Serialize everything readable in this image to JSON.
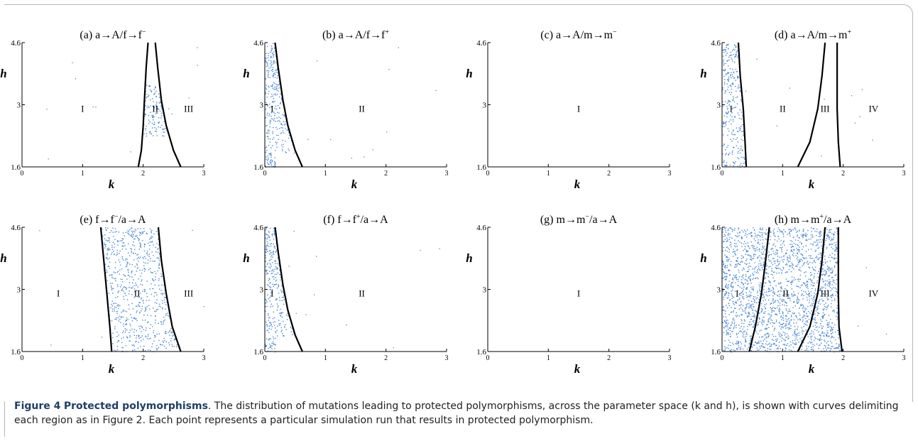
{
  "caption": {
    "label": "Figure 4",
    "title": "Protected polymorphisms",
    "text": ". The distribution of mutations leading to protected polymorphisms, across the parameter space (k and h), is shown with curves delimiting each region as in Figure 2. Each point represents a particular simulation run that results in protected polymorphism."
  },
  "chart_data": [
    {
      "panel": "a",
      "type": "scatter",
      "title": "(a) a→A/f→f−",
      "xlabel": "k",
      "ylabel": "h",
      "xlim": [
        0,
        3
      ],
      "ylim": [
        1.6,
        4.6
      ],
      "xticks": [
        "0",
        "1",
        "2",
        "3"
      ],
      "yticks": [
        "1.6",
        "3",
        "4.6"
      ],
      "regions": [
        {
          "label": "I",
          "x": 1.0
        },
        {
          "label": "II",
          "x": 2.2
        },
        {
          "label": "III",
          "x": 2.75
        }
      ],
      "boundaries": [
        [
          [
            1.92,
            1.6
          ],
          [
            1.97,
            2.0
          ],
          [
            2.0,
            2.6
          ],
          [
            2.02,
            3.2
          ],
          [
            2.05,
            4.0
          ],
          [
            2.08,
            4.6
          ]
        ],
        [
          [
            2.62,
            1.6
          ],
          [
            2.5,
            2.0
          ],
          [
            2.38,
            2.6
          ],
          [
            2.3,
            3.2
          ],
          [
            2.24,
            4.0
          ],
          [
            2.2,
            4.6
          ]
        ]
      ],
      "points": {
        "region": [
          [
            1.92,
            2.08
          ]
        ],
        "count": 300
      }
    },
    {
      "panel": "b",
      "type": "scatter",
      "title": "(b) a→A/f→f+",
      "xlabel": "k",
      "ylabel": "h",
      "xlim": [
        0,
        3
      ],
      "ylim": [
        1.6,
        4.6
      ],
      "xticks": [
        "0",
        "1",
        "2",
        "3"
      ],
      "yticks": [
        "1.6",
        "3",
        "4.6"
      ],
      "regions": [
        {
          "label": "I",
          "x": 0.12
        },
        {
          "label": "II",
          "x": 1.6
        }
      ],
      "boundaries": [
        [
          [
            0.62,
            1.6
          ],
          [
            0.5,
            2.0
          ],
          [
            0.38,
            2.6
          ],
          [
            0.3,
            3.2
          ],
          [
            0.22,
            4.0
          ],
          [
            0.17,
            4.6
          ]
        ]
      ],
      "points": {
        "region": [
          [
            0.0,
            0.17
          ]
        ],
        "count": 300
      }
    },
    {
      "panel": "c",
      "type": "scatter",
      "title": "(c) a→A/m→m−",
      "xlabel": "k",
      "ylabel": "h",
      "xlim": [
        0,
        3
      ],
      "ylim": [
        1.6,
        4.6
      ],
      "xticks": [
        "0",
        "1",
        "2",
        "3"
      ],
      "yticks": [
        "1.6",
        "3",
        "4.6"
      ],
      "regions": [
        {
          "label": "I",
          "x": 1.5
        }
      ],
      "boundaries": [],
      "points": {
        "region": [],
        "count": 0
      }
    },
    {
      "panel": "d",
      "type": "scatter",
      "title": "(d) a→A/m→m+",
      "xlabel": "k",
      "ylabel": "h",
      "xlim": [
        0,
        3
      ],
      "ylim": [
        1.6,
        4.6
      ],
      "xticks": [
        "0",
        "1",
        "2",
        "3"
      ],
      "yticks": [
        "1.6",
        "3",
        "4.6"
      ],
      "regions": [
        {
          "label": "I",
          "x": 0.15
        },
        {
          "label": "II",
          "x": 1.0
        },
        {
          "label": "III",
          "x": 1.7
        },
        {
          "label": "IV",
          "x": 2.5
        }
      ],
      "boundaries": [
        [
          [
            0.4,
            1.6
          ],
          [
            0.38,
            2.2
          ],
          [
            0.35,
            3.0
          ],
          [
            0.3,
            3.8
          ],
          [
            0.27,
            4.6
          ]
        ],
        [
          [
            1.25,
            1.6
          ],
          [
            1.45,
            2.2
          ],
          [
            1.58,
            3.0
          ],
          [
            1.65,
            3.8
          ],
          [
            1.7,
            4.6
          ]
        ],
        [
          [
            1.95,
            1.6
          ],
          [
            1.92,
            2.2
          ],
          [
            1.9,
            3.0
          ],
          [
            1.9,
            3.8
          ],
          [
            1.9,
            4.6
          ]
        ]
      ],
      "points": {
        "region": [
          [
            0.0,
            0.27
          ],
          [
            1.7,
            1.9
          ]
        ],
        "count": 600
      }
    },
    {
      "panel": "e",
      "type": "scatter",
      "title": "(e) f→f−/a→A",
      "xlabel": "k",
      "ylabel": "h",
      "xlim": [
        0,
        3
      ],
      "ylim": [
        1.6,
        4.6
      ],
      "xticks": [
        "0",
        "1",
        "2",
        "3"
      ],
      "yticks": [
        "1.6",
        "3",
        "4.6"
      ],
      "regions": [
        {
          "label": "I",
          "x": 0.6
        },
        {
          "label": "II",
          "x": 1.9
        },
        {
          "label": "III",
          "x": 2.75
        }
      ],
      "boundaries": [
        [
          [
            1.48,
            1.6
          ],
          [
            1.45,
            2.2
          ],
          [
            1.4,
            3.0
          ],
          [
            1.35,
            3.8
          ],
          [
            1.3,
            4.6
          ]
        ],
        [
          [
            2.62,
            1.6
          ],
          [
            2.48,
            2.2
          ],
          [
            2.38,
            3.0
          ],
          [
            2.3,
            3.8
          ],
          [
            2.25,
            4.6
          ]
        ]
      ],
      "points": {
        "region": [
          [
            1.3,
            2.25
          ]
        ],
        "count": 700
      }
    },
    {
      "panel": "f",
      "type": "scatter",
      "title": "(f) f→f+/a→A",
      "xlabel": "k",
      "ylabel": "h",
      "xlim": [
        0,
        3
      ],
      "ylim": [
        1.6,
        4.6
      ],
      "xticks": [
        "0",
        "1",
        "2",
        "3"
      ],
      "yticks": [
        "1.6",
        "3",
        "4.6"
      ],
      "regions": [
        {
          "label": "I",
          "x": 0.12
        },
        {
          "label": "II",
          "x": 1.6
        }
      ],
      "boundaries": [
        [
          [
            0.62,
            1.6
          ],
          [
            0.5,
            2.0
          ],
          [
            0.38,
            2.6
          ],
          [
            0.3,
            3.2
          ],
          [
            0.22,
            4.0
          ],
          [
            0.17,
            4.6
          ]
        ]
      ],
      "points": {
        "region": [
          [
            0.0,
            0.17
          ]
        ],
        "count": 300
      }
    },
    {
      "panel": "g",
      "type": "scatter",
      "title": "(g) m→m−/a→A",
      "xlabel": "k",
      "ylabel": "h",
      "xlim": [
        0,
        3
      ],
      "ylim": [
        1.6,
        4.6
      ],
      "xticks": [
        "0",
        "1",
        "2",
        "3"
      ],
      "yticks": [
        "1.6",
        "3",
        "4.6"
      ],
      "regions": [
        {
          "label": "I",
          "x": 1.5
        }
      ],
      "boundaries": [],
      "points": {
        "region": [],
        "count": 0
      }
    },
    {
      "panel": "h",
      "type": "scatter",
      "title": "(h) m→m+/a→A",
      "xlabel": "k",
      "ylabel": "h",
      "xlim": [
        0,
        3
      ],
      "ylim": [
        1.6,
        4.6
      ],
      "xticks": [
        "0",
        "1",
        "2",
        "3"
      ],
      "yticks": [
        "1.6",
        "3",
        "4.6"
      ],
      "regions": [
        {
          "label": "I",
          "x": 0.25
        },
        {
          "label": "II",
          "x": 1.05
        },
        {
          "label": "III",
          "x": 1.7
        },
        {
          "label": "IV",
          "x": 2.5
        }
      ],
      "boundaries": [
        [
          [
            0.45,
            1.6
          ],
          [
            0.55,
            2.2
          ],
          [
            0.65,
            3.0
          ],
          [
            0.72,
            3.8
          ],
          [
            0.78,
            4.6
          ]
        ],
        [
          [
            1.25,
            1.6
          ],
          [
            1.45,
            2.2
          ],
          [
            1.58,
            3.0
          ],
          [
            1.65,
            3.8
          ],
          [
            1.7,
            4.6
          ]
        ],
        [
          [
            1.98,
            1.6
          ],
          [
            1.93,
            2.2
          ],
          [
            1.92,
            3.0
          ],
          [
            1.92,
            3.8
          ],
          [
            1.92,
            4.6
          ]
        ]
      ],
      "points": {
        "region": [
          [
            0.0,
            1.95
          ]
        ],
        "count": 2200
      }
    }
  ]
}
